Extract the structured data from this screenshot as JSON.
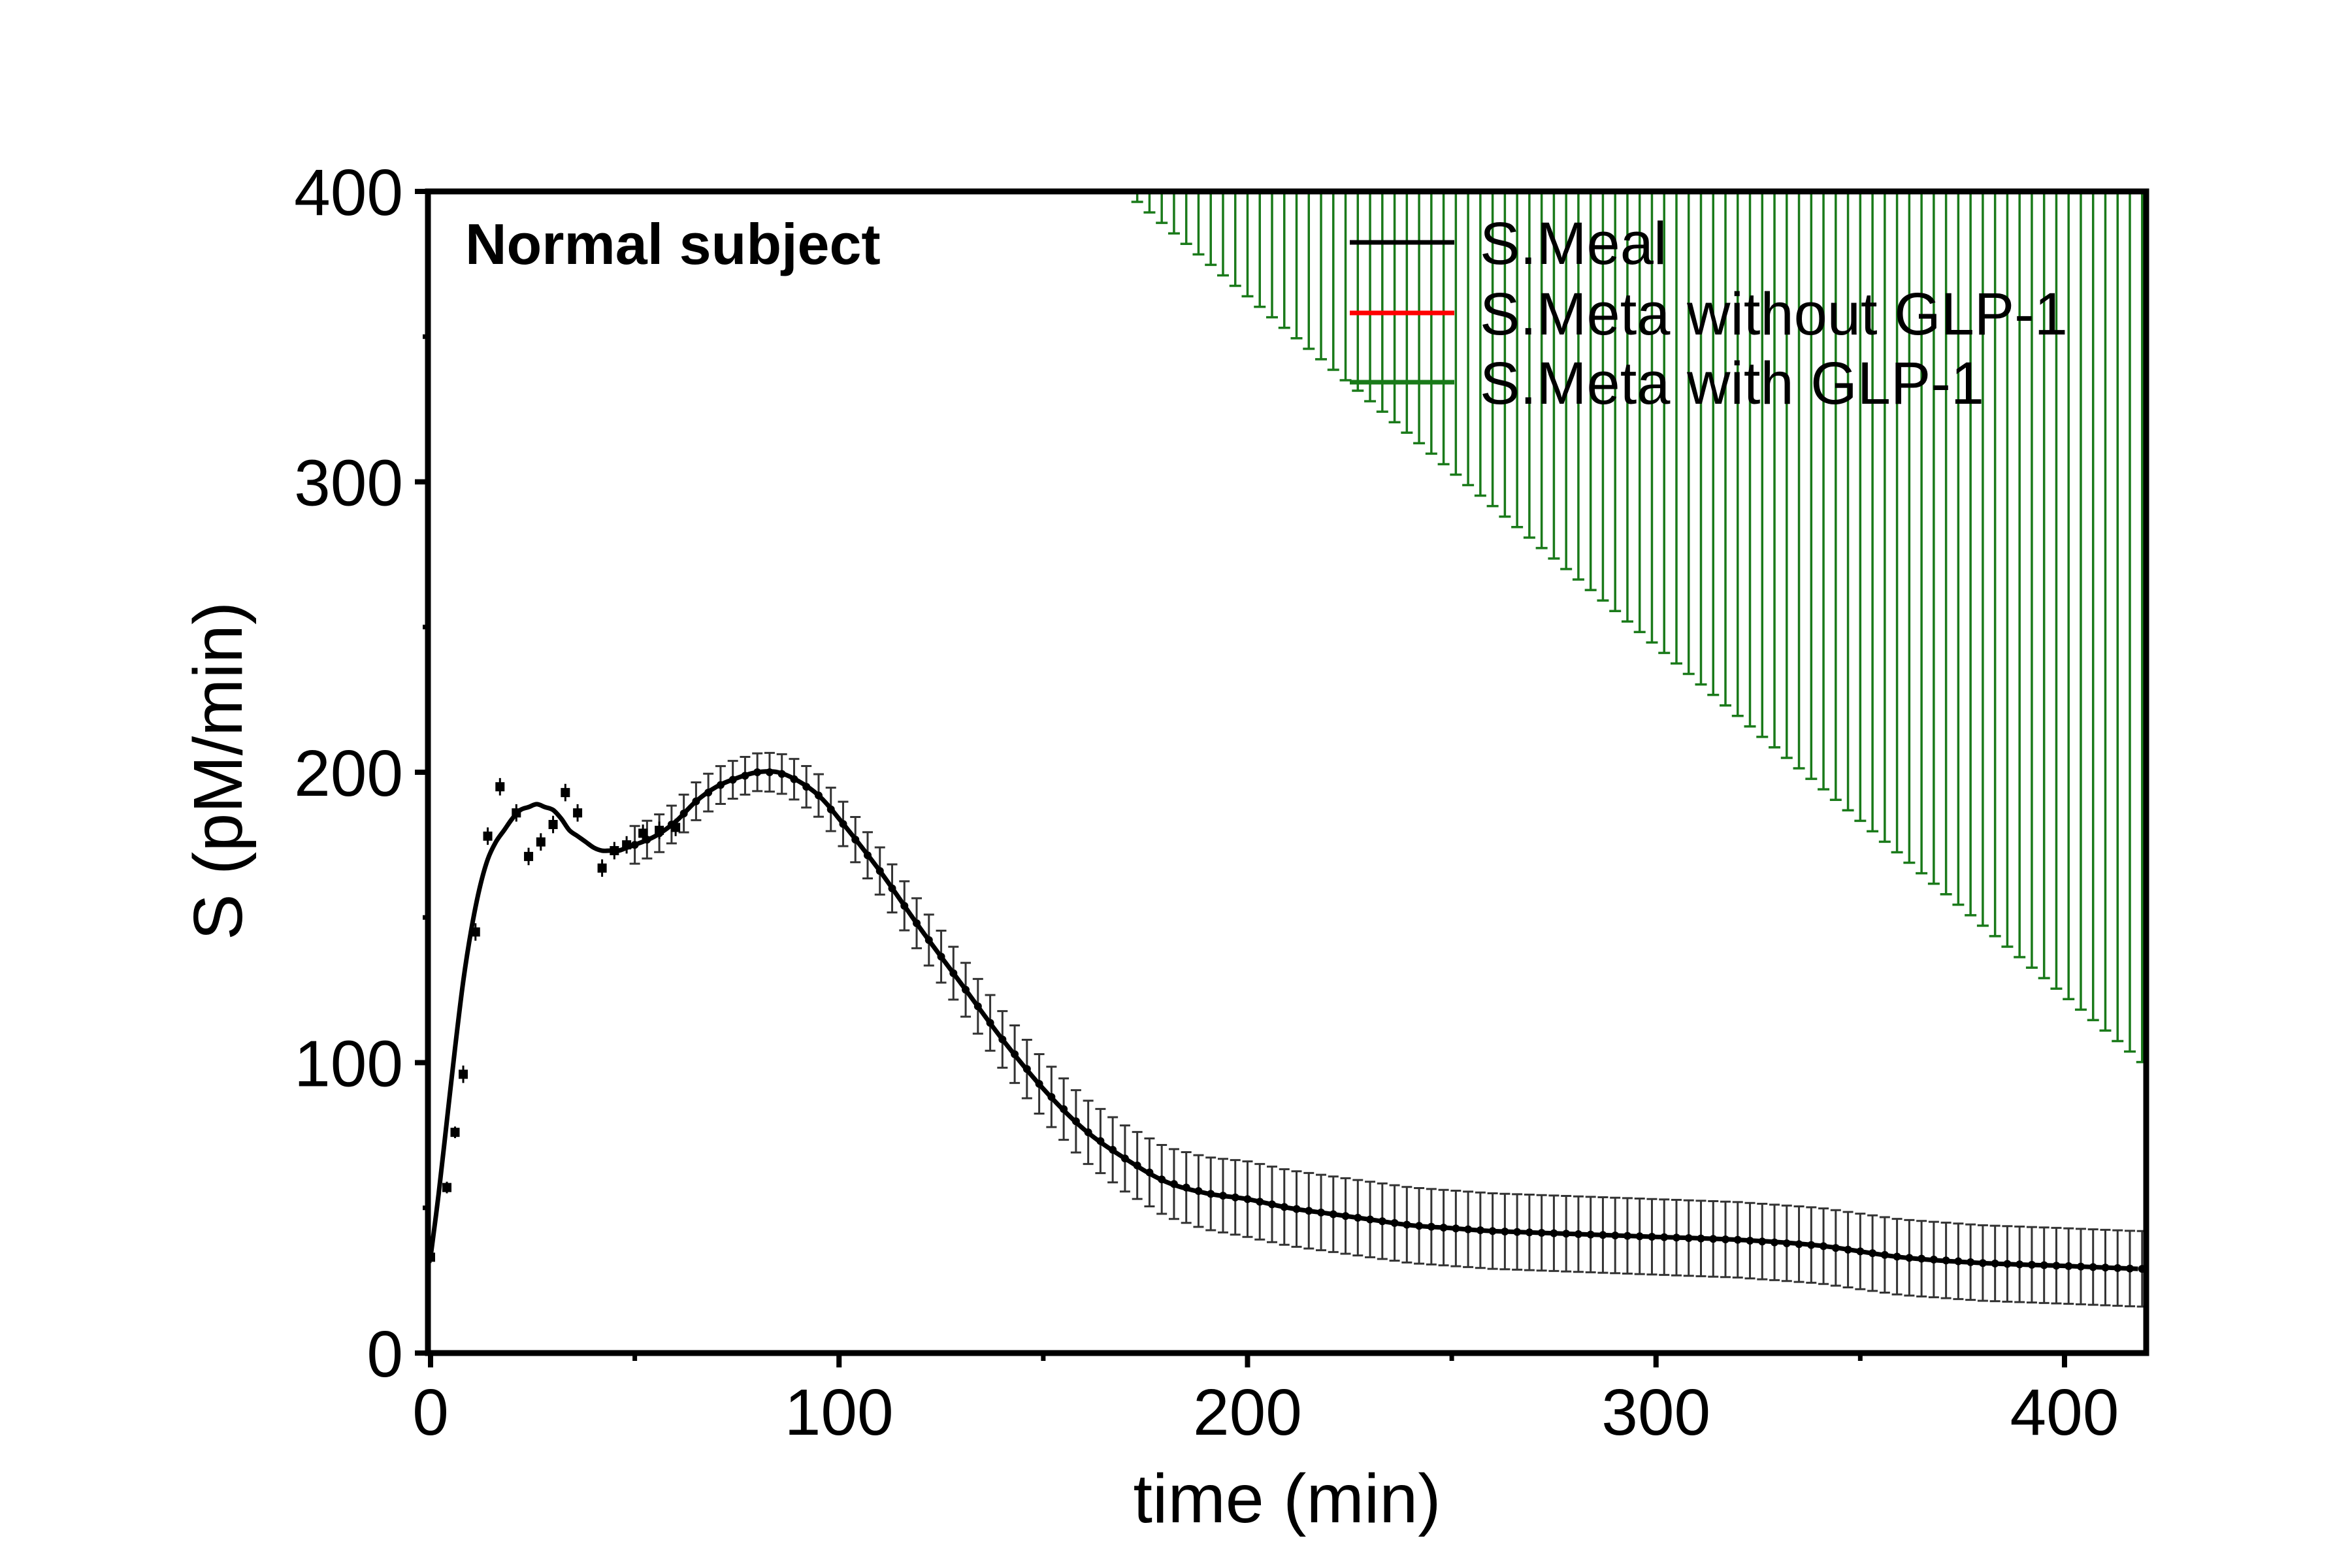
{
  "chart_data": {
    "type": "line",
    "title": "",
    "panel_label": "Normal subject",
    "xlabel": "time (min)",
    "ylabel": "S (pM/min)",
    "xlim": [
      0,
      420
    ],
    "ylim": [
      0,
      400
    ],
    "xticks": [
      0,
      100,
      200,
      300,
      400
    ],
    "yticks": [
      0,
      100,
      200,
      300,
      400
    ],
    "grid": false,
    "legend_position": "top-right",
    "legend": [
      {
        "label": "S.Meal",
        "color": "#000000"
      },
      {
        "label": "S.Meta without GLP-1",
        "color": "#ff0000"
      },
      {
        "label": "S.Meta with GLP-1",
        "color": "#1a7a1a"
      }
    ],
    "series": [
      {
        "name": "S.Meal",
        "color": "#000000",
        "x": [
          0,
          2,
          4,
          6,
          8,
          10,
          12,
          14,
          16,
          18,
          20,
          22,
          24,
          26,
          28,
          30,
          32,
          34,
          36,
          38,
          40,
          42,
          44,
          46,
          48,
          50,
          55,
          60,
          65,
          70,
          75,
          80,
          85,
          90,
          95,
          100,
          110,
          120,
          130,
          140,
          150,
          160,
          170,
          180,
          190,
          200,
          210,
          220,
          230,
          240,
          250,
          260,
          280,
          300,
          320,
          340,
          360,
          380,
          400,
          418
        ],
        "y": [
          33,
          55,
          80,
          105,
          128,
          146,
          160,
          170,
          176,
          180,
          184,
          187,
          188,
          189,
          188,
          187,
          184,
          180,
          178,
          176,
          174,
          173,
          173,
          173,
          174,
          175,
          178,
          183,
          190,
          195,
          198,
          200,
          200,
          197,
          192,
          184,
          166,
          146,
          127,
          108,
          91,
          77,
          67,
          59,
          55,
          53,
          50,
          48,
          46,
          44,
          43,
          42,
          41,
          40,
          39,
          37,
          33,
          31,
          30,
          29
        ],
        "error_bar_x_range": [
          50,
          420
        ],
        "error_bar_step": 3,
        "error_bar_halfwidth": 6.5,
        "error_bar_halfwidth_tail": 13
      },
      {
        "name": "S.Meta with GLP-1",
        "color": "#1a7a1a",
        "x": [
          170,
          420
        ],
        "y": [
          400,
          99
        ],
        "error_bar_step": 3,
        "note_visible_as": "vertical error bars extending from top of axes down to the mean curve"
      }
    ],
    "scatter": {
      "name": "S.Meal data",
      "x": [
        0,
        4,
        6,
        8,
        11,
        14,
        17,
        21,
        24,
        27,
        30,
        33,
        36,
        42,
        45,
        48,
        52,
        56,
        60
      ],
      "y": [
        33,
        57,
        76,
        96,
        145,
        178,
        195,
        186,
        171,
        176,
        182,
        193,
        186,
        167,
        173,
        175,
        179,
        180,
        181
      ],
      "err": [
        2,
        2,
        2,
        3,
        3,
        3,
        3,
        3,
        3,
        3,
        3,
        3,
        3,
        3,
        3,
        3,
        3,
        3,
        3
      ]
    }
  }
}
